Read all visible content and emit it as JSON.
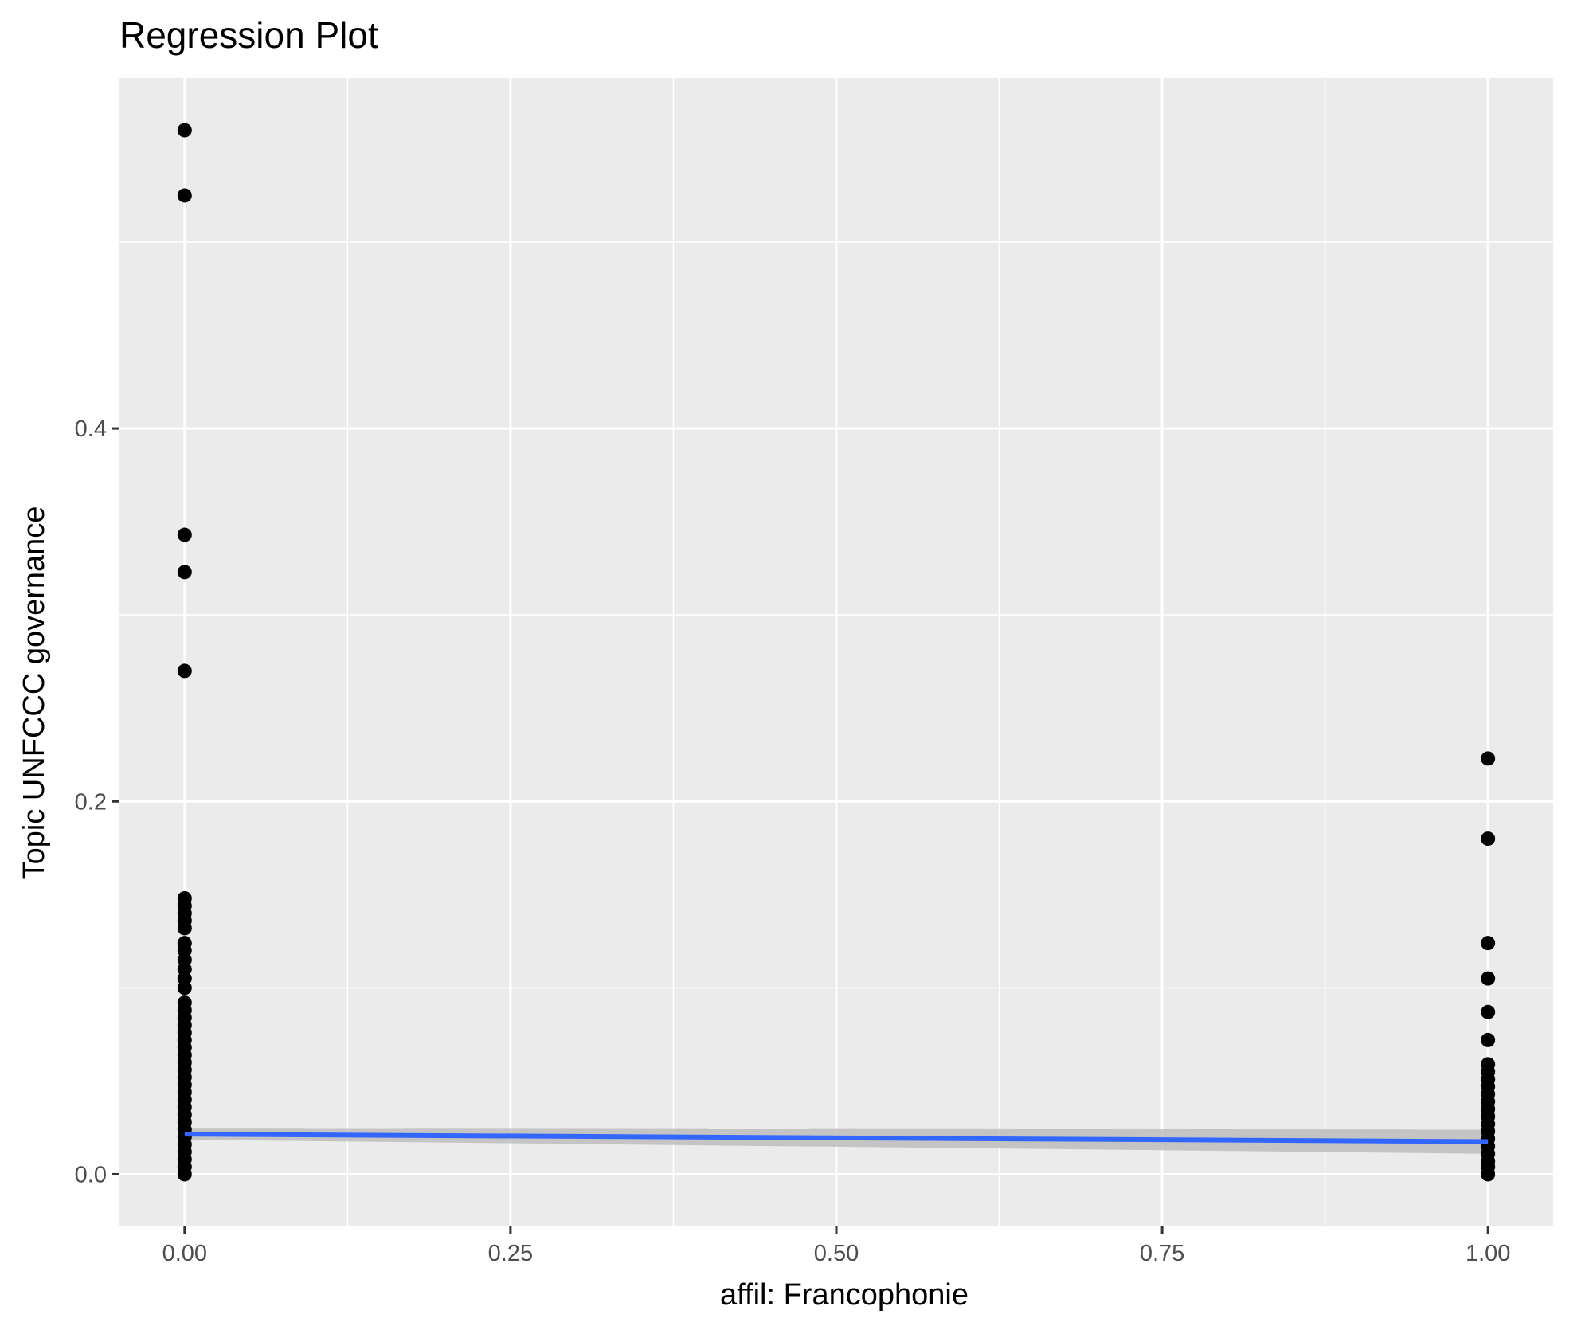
{
  "chart_data": {
    "type": "scatter",
    "title": "Regression Plot",
    "xlabel": "affil: Francophonie",
    "ylabel": "Topic UNFCCC governance",
    "xlim": [
      -0.05,
      1.05
    ],
    "ylim": [
      -0.028,
      0.588
    ],
    "x_ticks": [
      0,
      0.25,
      0.5,
      0.75,
      1
    ],
    "x_tick_labels": [
      "0.00",
      "0.25",
      "0.50",
      "0.75",
      "1.00"
    ],
    "y_ticks": [
      0,
      0.2,
      0.4
    ],
    "y_tick_labels": [
      "0.0",
      "0.2",
      "0.4"
    ],
    "grid": true,
    "legend": "none",
    "colors": {
      "panel": "#ebebeb",
      "grid": "#ffffff",
      "points": "#000000",
      "fit_line": "#3366ff",
      "confidence_band": "#bdbdbd"
    },
    "points": {
      "x0": [
        0.56,
        0.525,
        0.343,
        0.323,
        0.27,
        0.148,
        0.144,
        0.14,
        0.136,
        0.132,
        0.124,
        0.12,
        0.115,
        0.11,
        0.105,
        0.1,
        0.092,
        0.088,
        0.084,
        0.08,
        0.076,
        0.072,
        0.068,
        0.064,
        0.06,
        0.056,
        0.052,
        0.048,
        0.044,
        0.04,
        0.036,
        0.032,
        0.028,
        0.024,
        0.02,
        0.016,
        0.012,
        0.008,
        0.004,
        0.0
      ],
      "x1": [
        0.223,
        0.18,
        0.124,
        0.105,
        0.087,
        0.072,
        0.059,
        0.055,
        0.051,
        0.047,
        0.043,
        0.039,
        0.035,
        0.031,
        0.027,
        0.023,
        0.019,
        0.015,
        0.011,
        0.007,
        0.004,
        0.0
      ]
    },
    "regression": {
      "x": [
        0,
        1
      ],
      "y": [
        0.0215,
        0.0175
      ],
      "ci_lower": [
        0.0185,
        0.011
      ],
      "ci_upper": [
        0.0245,
        0.024
      ]
    }
  }
}
